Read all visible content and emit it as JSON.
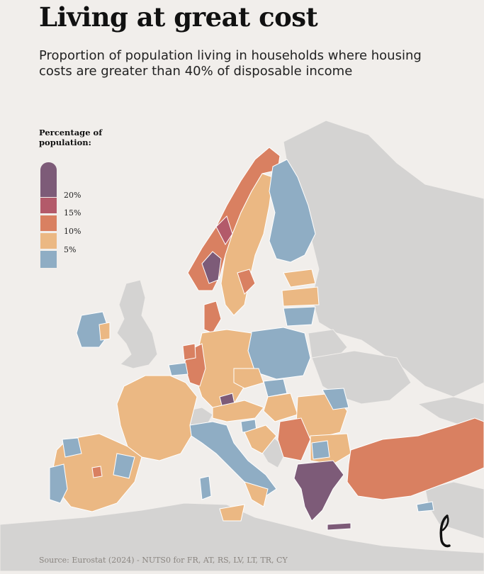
{
  "title": "Living at great cost",
  "subtitle": "Proportion of population living in households where housing costs are greater than 40% of disposable income",
  "legend": {
    "title": "Percentage of population:",
    "bins": [
      {
        "label": "20%",
        "color": "#7d5b78"
      },
      {
        "label": "15%",
        "color": "#b35a6a"
      },
      {
        "label": "10%",
        "color": "#d98061"
      },
      {
        "label": "5%",
        "color": "#ebb883"
      },
      {
        "label": "",
        "color": "#8fadc4"
      }
    ]
  },
  "colors": {
    "background": "#f1eeeb",
    "sea": "#f1eeeb",
    "non_data_land": "#d4d3d2",
    "border": "#ffffff"
  },
  "source": "Source: Eurostat (2024) - NUTS0 for FR, AT, RS, LV, LT, TR, CY"
}
